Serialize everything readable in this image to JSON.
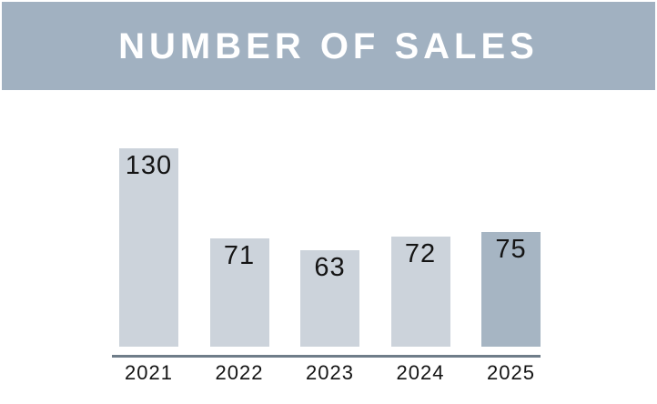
{
  "title": "NUMBER OF SALES",
  "colors": {
    "banner_bg": "#a1b1c1",
    "title_text": "#ffffff",
    "bar_light": "#ccd3db",
    "bar_highlight": "#a6b5c3",
    "axis_line": "#6f7d89",
    "label_text": "#141414"
  },
  "chart_data": {
    "type": "bar",
    "title": "NUMBER OF SALES",
    "categories": [
      "2021",
      "2022",
      "2023",
      "2024",
      "2025"
    ],
    "values": [
      130,
      71,
      63,
      72,
      75
    ],
    "xlabel": "",
    "ylabel": "",
    "ylim": [
      0,
      140
    ],
    "value_labels_shown": true,
    "highlighted_category": "2025",
    "gridlines": false,
    "y_axis_shown": false,
    "legend": "none"
  }
}
